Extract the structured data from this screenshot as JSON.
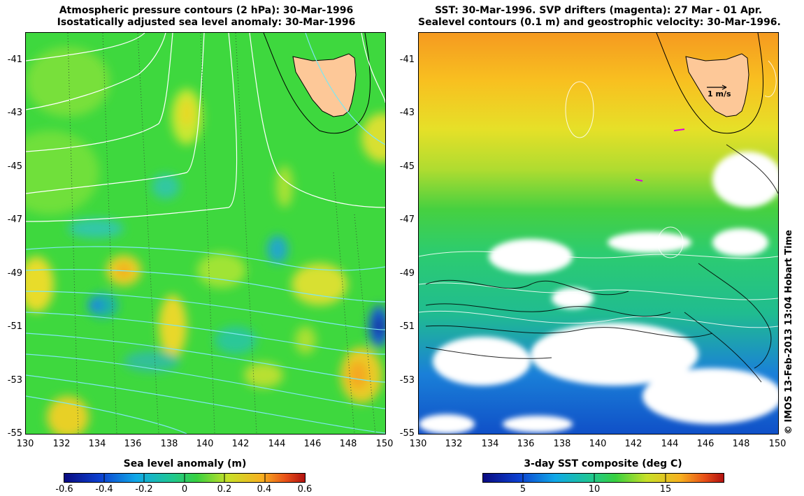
{
  "left_panel": {
    "title_line1": "Atmospheric pressure contours (2 hPa): 30-Mar-1996",
    "title_line2": "Isostatically adjusted sea level anomaly: 30-Mar-1996",
    "colorbar_title": "Sea level anomaly (m)",
    "colorbar_ticks": [
      "-0.6",
      "-0.4",
      "-0.2",
      "0",
      "0.2",
      "0.4",
      "0.6"
    ]
  },
  "right_panel": {
    "title_line1": "SST: 30-Mar-1996. SVP drifters (magenta): 27 Mar - 01 Apr.",
    "title_line2": "Sealevel contours (0.1 m) and geostrophic velocity: 30-Mar-1996.",
    "colorbar_title": "3-day SST composite (deg C)",
    "colorbar_ticks": [
      "5",
      "10",
      "15"
    ],
    "scale_arrow_label": "1 m/s"
  },
  "axes": {
    "lat_ticks": [
      "-41",
      "-43",
      "-45",
      "-47",
      "-49",
      "-51",
      "-53",
      "-55"
    ],
    "lon_ticks": [
      "130",
      "132",
      "134",
      "136",
      "138",
      "140",
      "142",
      "144",
      "146",
      "148",
      "150"
    ]
  },
  "copyright": "© IMOS 13-Feb-2013 13:04 Hobart Time",
  "colors": {
    "land": "#fdc898",
    "ocean_green": "#3ed83e",
    "ssh_high": "#f5b21c",
    "ssh_low": "#1a7fe0",
    "contour_pressure": "#ffffff",
    "contour_cyan": "#7fe6f0",
    "drifter": "#e000e0"
  }
}
